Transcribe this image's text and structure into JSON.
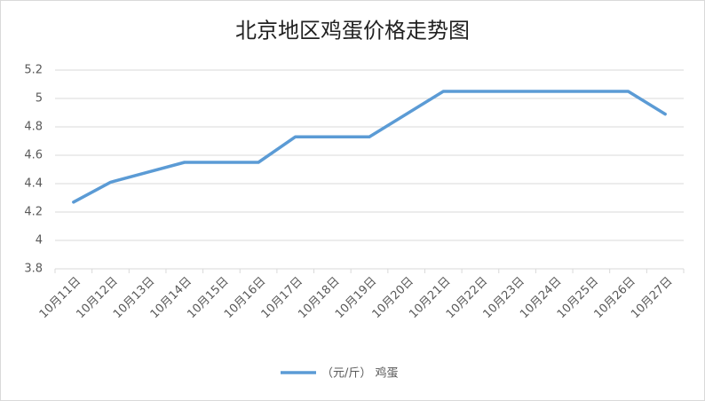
{
  "chart_data": {
    "type": "line",
    "title": "北京地区鸡蛋价格走势图",
    "categories": [
      "10月11日",
      "10月12日",
      "10月13日",
      "10月14日",
      "10月15日",
      "10月16日",
      "10月17日",
      "10月18日",
      "10月19日",
      "10月20日",
      "10月21日",
      "10月22日",
      "10月23日",
      "10月24日",
      "10月25日",
      "10月26日",
      "10月27日"
    ],
    "series": [
      {
        "name": "（元/斤） 鸡蛋",
        "color": "#5b9bd5",
        "values": [
          4.27,
          4.41,
          4.48,
          4.55,
          4.55,
          4.55,
          4.73,
          4.73,
          4.73,
          4.89,
          5.05,
          5.05,
          5.05,
          5.05,
          5.05,
          5.05,
          4.89
        ]
      }
    ],
    "ylim": [
      3.8,
      5.2
    ],
    "yticks": [
      3.8,
      4,
      4.2,
      4.4,
      4.6,
      4.8,
      5,
      5.2
    ],
    "grid": true,
    "legend": "bottom"
  }
}
